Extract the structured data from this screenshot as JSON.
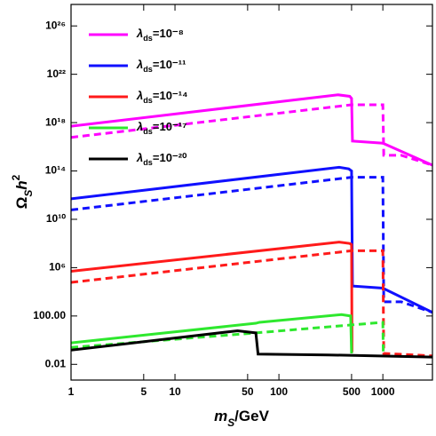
{
  "chart_data": {
    "type": "line",
    "x_label": "mS/GeV",
    "y_label": "ΩSh2",
    "log_x": true,
    "log_y": true,
    "legend": "upper left",
    "xlim": [
      1,
      3000
    ],
    "ylim": [
      0.0005,
      6e+27
    ],
    "xticks": [
      1,
      5,
      10,
      50,
      100,
      500,
      1000
    ],
    "yticks": [
      {
        "value": 0.01,
        "label": "0.01"
      },
      {
        "value": 100,
        "label": "100.00"
      },
      {
        "value": 1000000.0,
        "label": "10⁶"
      },
      {
        "value": 10000000000.0,
        "label": "10¹⁰"
      },
      {
        "value": 100000000000000.0,
        "label": "10¹⁴"
      },
      {
        "value": 1e+18,
        "label": "10¹⁸"
      },
      {
        "value": 1e+22,
        "label": "10²²"
      },
      {
        "value": 1e+26,
        "label": "10²⁶"
      }
    ],
    "series": [
      {
        "name": "λds=10⁻⁸",
        "color": "#ff00ff",
        "dashed": false,
        "x": [
          1,
          370,
          480,
          500,
          510,
          1000,
          3000
        ],
        "values": [
          5e+17,
          2e+20,
          1.5e+20,
          1e+20,
          3e+16,
          2e+16,
          300000000000000.0
        ]
      },
      {
        "color": "#ff00ff",
        "dashed": true,
        "x": [
          1,
          500,
          1000,
          1020,
          1500,
          3000
        ],
        "values": [
          6e+16,
          3e+19,
          3e+19,
          2000000000000000.0,
          2000000000000000.0,
          300000000000000.0
        ]
      },
      {
        "name": "λds=10⁻¹¹",
        "color": "#1010ff",
        "dashed": false,
        "x": [
          1,
          380,
          470,
          500,
          510,
          1000,
          3000
        ],
        "values": [
          500000000000.0,
          200000000000000.0,
          150000000000000.0,
          100000000000000.0,
          30000.0,
          20000.0,
          200
        ]
      },
      {
        "color": "#1010ff",
        "dashed": true,
        "x": [
          1,
          500,
          1000,
          1020,
          1500,
          3000
        ],
        "values": [
          60000000000.0,
          30000000000000.0,
          30000000000000.0,
          1500,
          1500,
          200
        ]
      },
      {
        "name": "λds=10⁻¹⁴",
        "color": "#ff1a1a",
        "dashed": false,
        "x": [
          1,
          380,
          480,
          500,
          505
        ],
        "values": [
          500000.0,
          130000000.0,
          100000000.0,
          80000000.0,
          0.1
        ]
      },
      {
        "color": "#ff1a1a",
        "dashed": true,
        "x": [
          1,
          500,
          1000,
          1020,
          3000
        ],
        "values": [
          60000.0,
          25000000.0,
          25000000.0,
          0.08,
          0.05
        ]
      },
      {
        "name": "λds=10⁻¹⁷",
        "color": "#2ee82e",
        "dashed": false,
        "x": [
          1,
          60,
          65,
          400,
          490,
          500
        ],
        "values": [
          0.6,
          25,
          30,
          130,
          100,
          0.08
        ]
      },
      {
        "color": "#2ee82e",
        "dashed": true,
        "x": [
          1,
          60,
          1000,
          1010
        ],
        "values": [
          0.25,
          4,
          30,
          0.07
        ]
      },
      {
        "name": "λds=10⁻²⁰",
        "color": "#000000",
        "dashed": false,
        "x": [
          1,
          40,
          60,
          63,
          300,
          3000
        ],
        "values": [
          0.15,
          6,
          4,
          0.07,
          0.06,
          0.04
        ]
      }
    ]
  }
}
